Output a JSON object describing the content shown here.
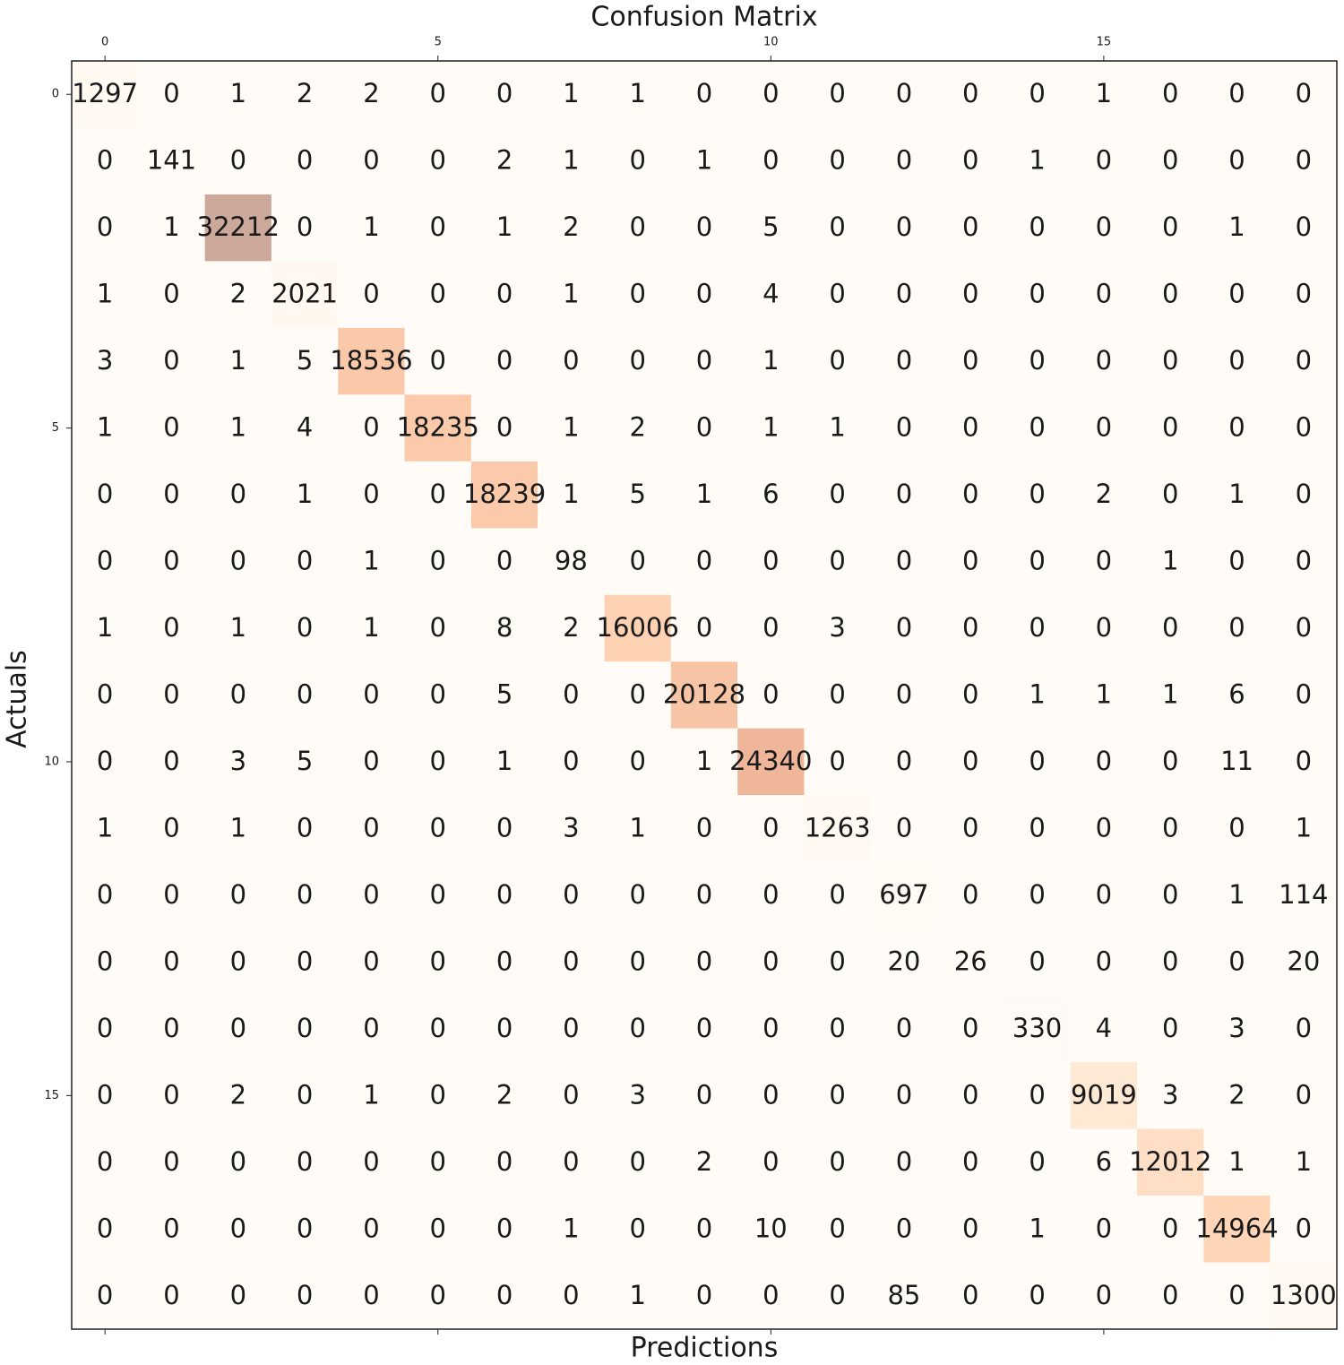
{
  "chart_data": {
    "type": "heatmap",
    "title": "Confusion Matrix",
    "x_label": "Predictions",
    "y_label": "Actuals",
    "xlim": [
      -0.5,
      18.5
    ],
    "ylim": [
      -0.5,
      18.5
    ],
    "xticks": [
      0,
      5,
      10,
      15
    ],
    "yticks": [
      0,
      5,
      10,
      15
    ],
    "colors": [
      "#fff5eb",
      "#fdd0a2",
      "#fd8d3c",
      "#d94801",
      "#7f2704"
    ],
    "alpha": 0.4,
    "values": [
      [
        1297,
        0,
        1,
        2,
        2,
        0,
        0,
        1,
        1,
        0,
        0,
        0,
        0,
        0,
        0,
        1,
        0,
        0,
        0
      ],
      [
        0,
        141,
        0,
        0,
        0,
        0,
        2,
        1,
        0,
        1,
        0,
        0,
        0,
        0,
        1,
        0,
        0,
        0,
        0
      ],
      [
        0,
        1,
        32212,
        0,
        1,
        0,
        1,
        2,
        0,
        0,
        5,
        0,
        0,
        0,
        0,
        0,
        0,
        1,
        0
      ],
      [
        1,
        0,
        2,
        2021,
        0,
        0,
        0,
        1,
        0,
        0,
        4,
        0,
        0,
        0,
        0,
        0,
        0,
        0,
        0
      ],
      [
        3,
        0,
        1,
        5,
        18536,
        0,
        0,
        0,
        0,
        0,
        1,
        0,
        0,
        0,
        0,
        0,
        0,
        0,
        0
      ],
      [
        1,
        0,
        1,
        4,
        0,
        18235,
        0,
        1,
        2,
        0,
        1,
        1,
        0,
        0,
        0,
        0,
        0,
        0,
        0
      ],
      [
        0,
        0,
        0,
        1,
        0,
        0,
        18239,
        1,
        5,
        1,
        6,
        0,
        0,
        0,
        0,
        2,
        0,
        1,
        0
      ],
      [
        0,
        0,
        0,
        0,
        1,
        0,
        0,
        98,
        0,
        0,
        0,
        0,
        0,
        0,
        0,
        0,
        1,
        0,
        0
      ],
      [
        1,
        0,
        1,
        0,
        1,
        0,
        8,
        2,
        16006,
        0,
        0,
        3,
        0,
        0,
        0,
        0,
        0,
        0,
        0
      ],
      [
        0,
        0,
        0,
        0,
        0,
        0,
        5,
        0,
        0,
        20128,
        0,
        0,
        0,
        0,
        1,
        1,
        1,
        6,
        0
      ],
      [
        0,
        0,
        3,
        5,
        0,
        0,
        1,
        0,
        0,
        1,
        24340,
        0,
        0,
        0,
        0,
        0,
        0,
        11,
        0
      ],
      [
        1,
        0,
        1,
        0,
        0,
        0,
        0,
        3,
        1,
        0,
        0,
        1263,
        0,
        0,
        0,
        0,
        0,
        0,
        1
      ],
      [
        0,
        0,
        0,
        0,
        0,
        0,
        0,
        0,
        0,
        0,
        0,
        0,
        697,
        0,
        0,
        0,
        0,
        1,
        114
      ],
      [
        0,
        0,
        0,
        0,
        0,
        0,
        0,
        0,
        0,
        0,
        0,
        0,
        20,
        26,
        0,
        0,
        0,
        0,
        20
      ],
      [
        0,
        0,
        0,
        0,
        0,
        0,
        0,
        0,
        0,
        0,
        0,
        0,
        0,
        0,
        330,
        4,
        0,
        3,
        0
      ],
      [
        0,
        0,
        2,
        0,
        1,
        0,
        2,
        0,
        3,
        0,
        0,
        0,
        0,
        0,
        0,
        9019,
        3,
        2,
        0
      ],
      [
        0,
        0,
        0,
        0,
        0,
        0,
        0,
        0,
        0,
        2,
        0,
        0,
        0,
        0,
        0,
        6,
        12012,
        1,
        1
      ],
      [
        0,
        0,
        0,
        0,
        0,
        0,
        0,
        1,
        0,
        0,
        10,
        0,
        0,
        0,
        1,
        0,
        0,
        14964,
        0
      ],
      [
        0,
        0,
        0,
        0,
        0,
        0,
        0,
        0,
        1,
        0,
        0,
        0,
        85,
        0,
        0,
        0,
        0,
        0,
        1300
      ]
    ]
  }
}
